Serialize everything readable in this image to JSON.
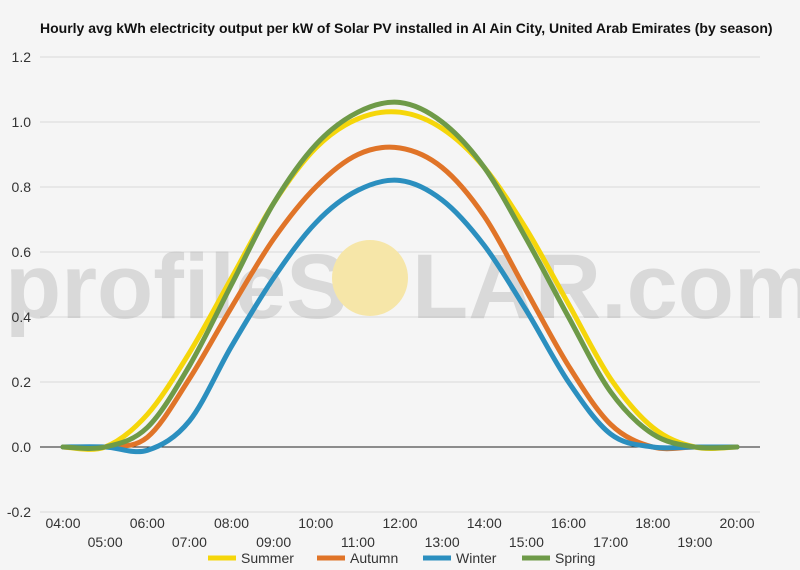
{
  "chart_data": {
    "type": "line",
    "title": "Hourly avg kWh electricity output per kW of Solar PV installed in Al Ain City, United Arab Emirates (by season)",
    "xlabel": "",
    "ylabel": "",
    "ylim": [
      -0.2,
      1.2
    ],
    "yticks": [
      "-0.2",
      "0.0",
      "0.2",
      "0.4",
      "0.6",
      "0.8",
      "1.0",
      "1.2"
    ],
    "categories": [
      "04:00",
      "05:00",
      "06:00",
      "07:00",
      "08:00",
      "09:00",
      "10:00",
      "11:00",
      "12:00",
      "13:00",
      "14:00",
      "15:00",
      "16:00",
      "17:00",
      "18:00",
      "19:00",
      "20:00"
    ],
    "grid": true,
    "legend": "bottom",
    "series": [
      {
        "name": "Summer",
        "color": "#f5d60a",
        "values": [
          0.0,
          0.0,
          0.1,
          0.29,
          0.52,
          0.75,
          0.92,
          1.01,
          1.03,
          0.98,
          0.86,
          0.67,
          0.44,
          0.21,
          0.06,
          0.0,
          0.0
        ]
      },
      {
        "name": "Autumn",
        "color": "#e07428",
        "values": [
          0.0,
          0.0,
          0.03,
          0.21,
          0.43,
          0.64,
          0.8,
          0.9,
          0.92,
          0.86,
          0.71,
          0.48,
          0.25,
          0.07,
          0.0,
          0.0,
          0.0
        ]
      },
      {
        "name": "Winter",
        "color": "#2b8fbf",
        "values": [
          0.0,
          0.0,
          -0.01,
          0.08,
          0.31,
          0.52,
          0.69,
          0.79,
          0.82,
          0.76,
          0.62,
          0.42,
          0.2,
          0.04,
          0.0,
          0.0,
          0.0
        ]
      },
      {
        "name": "Spring",
        "color": "#6e9a48",
        "values": [
          0.0,
          0.0,
          0.06,
          0.25,
          0.5,
          0.75,
          0.93,
          1.03,
          1.06,
          1.0,
          0.86,
          0.64,
          0.4,
          0.17,
          0.04,
          0.0,
          0.0
        ]
      }
    ]
  },
  "watermark": {
    "text_left": "profileS",
    "text_right": "LAR.com",
    "sun_color": "#f6e6a8"
  }
}
